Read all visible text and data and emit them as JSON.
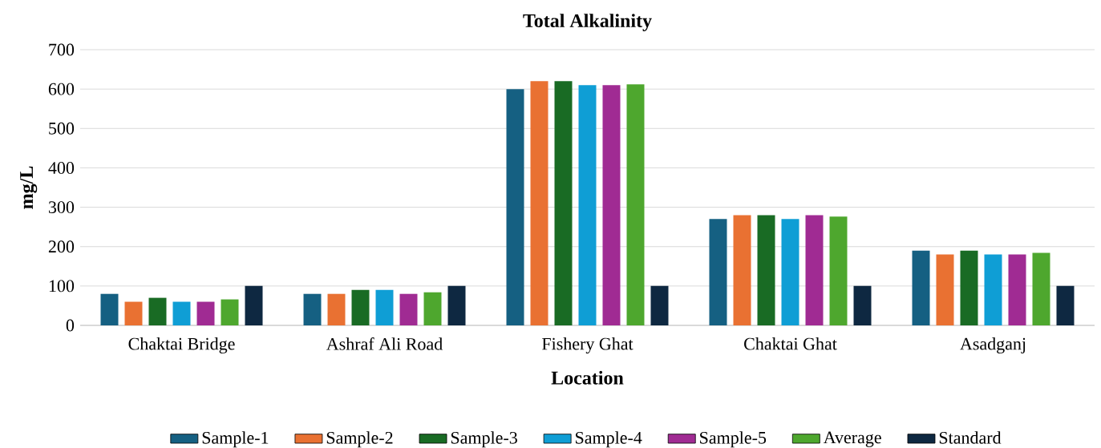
{
  "chart_data": {
    "type": "bar",
    "title": "Total Alkalinity",
    "xlabel": "Location",
    "ylabel": "mg/L",
    "categories": [
      "Chaktai Bridge",
      "Ashraf Ali Road",
      "Fishery Ghat",
      "Chaktai Ghat",
      "Asadganj"
    ],
    "series": [
      {
        "name": "Sample-1",
        "color": "#156082",
        "values": [
          80,
          80,
          600,
          270,
          190
        ]
      },
      {
        "name": "Sample-2",
        "color": "#e97132",
        "values": [
          60,
          80,
          620,
          280,
          180
        ]
      },
      {
        "name": "Sample-3",
        "color": "#196b24",
        "values": [
          70,
          90,
          620,
          280,
          190
        ]
      },
      {
        "name": "Sample-4",
        "color": "#0f9ed5",
        "values": [
          60,
          90,
          610,
          270,
          180
        ]
      },
      {
        "name": "Sample-5",
        "color": "#a02b93",
        "values": [
          60,
          80,
          610,
          280,
          180
        ]
      },
      {
        "name": "Average",
        "color": "#4ea72e",
        "values": [
          66,
          84,
          612,
          276,
          184
        ]
      },
      {
        "name": "Standard",
        "color": "#0e2841",
        "values": [
          100,
          100,
          100,
          100,
          100
        ]
      }
    ],
    "ylim": [
      0,
      700
    ],
    "yticks": [
      0,
      100,
      200,
      300,
      400,
      500,
      600,
      700
    ],
    "grid": "y",
    "legend": "bottom"
  }
}
